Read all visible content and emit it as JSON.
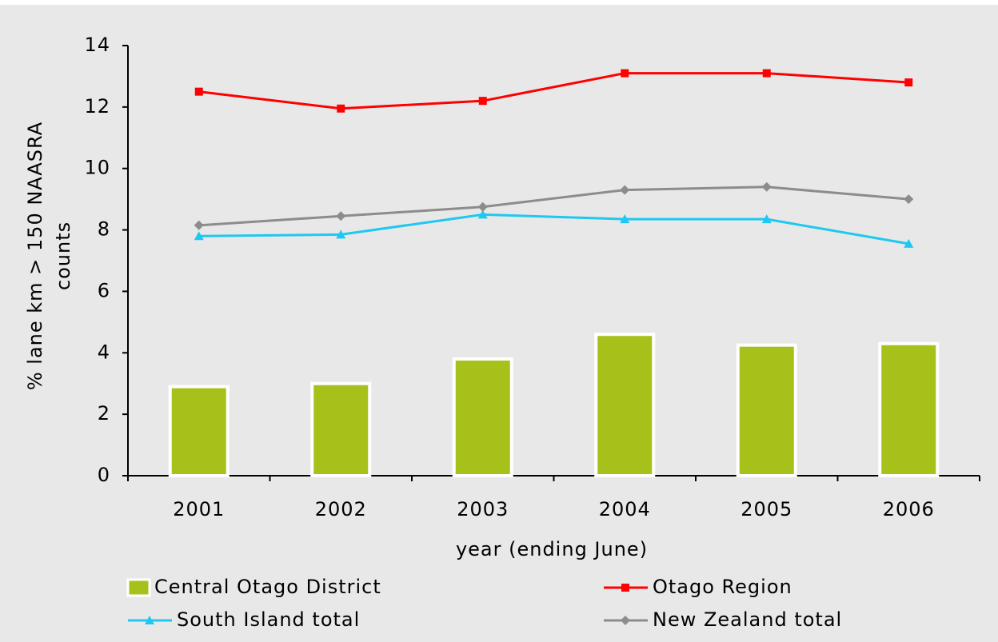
{
  "chart_data": {
    "type": "bar",
    "xlabel": "year (ending June)",
    "ylabel": [
      "% lane km > 150 NAASRA",
      "counts"
    ],
    "categories": [
      "2001",
      "2002",
      "2003",
      "2004",
      "2005",
      "2006"
    ],
    "series": [
      {
        "name": "Central Otago District",
        "type": "bar",
        "color": "#a8c01a",
        "values": [
          2.9,
          3.0,
          3.8,
          4.6,
          4.25,
          4.3
        ]
      },
      {
        "name": "Otago Region",
        "type": "line",
        "marker": "square",
        "color": "#ff0000",
        "values": [
          12.5,
          11.95,
          12.2,
          13.1,
          13.1,
          12.8
        ]
      },
      {
        "name": "South Island total",
        "type": "line",
        "marker": "triangle",
        "color": "#1ec8f0",
        "values": [
          7.8,
          7.85,
          8.5,
          8.35,
          8.35,
          7.55
        ]
      },
      {
        "name": "New Zealand total",
        "type": "line",
        "marker": "diamond",
        "color": "#8c8c8c",
        "values": [
          8.15,
          8.45,
          8.75,
          9.3,
          9.4,
          9.0
        ]
      }
    ],
    "ylim": [
      0,
      14
    ],
    "yticks": [
      0,
      2,
      4,
      6,
      8,
      10,
      12,
      14
    ],
    "grid": false
  }
}
